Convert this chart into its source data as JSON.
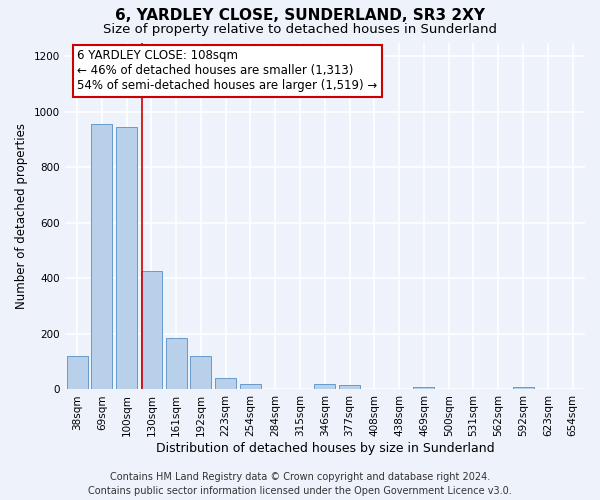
{
  "title": "6, YARDLEY CLOSE, SUNDERLAND, SR3 2XY",
  "subtitle": "Size of property relative to detached houses in Sunderland",
  "xlabel": "Distribution of detached houses by size in Sunderland",
  "ylabel": "Number of detached properties",
  "categories": [
    "38sqm",
    "69sqm",
    "100sqm",
    "130sqm",
    "161sqm",
    "192sqm",
    "223sqm",
    "254sqm",
    "284sqm",
    "315sqm",
    "346sqm",
    "377sqm",
    "408sqm",
    "438sqm",
    "469sqm",
    "500sqm",
    "531sqm",
    "562sqm",
    "592sqm",
    "623sqm",
    "654sqm"
  ],
  "values": [
    120,
    955,
    945,
    425,
    185,
    120,
    42,
    20,
    0,
    0,
    18,
    15,
    0,
    0,
    8,
    0,
    0,
    0,
    8,
    0,
    0
  ],
  "bar_color": "#b8d0ea",
  "bar_edge_color": "#6699cc",
  "vline_x": 2.62,
  "vline_color": "#cc0000",
  "annotation_line1": "6 YARDLEY CLOSE: 108sqm",
  "annotation_line2": "← 46% of detached houses are smaller (1,313)",
  "annotation_line3": "54% of semi-detached houses are larger (1,519) →",
  "annotation_box_color": "#ffffff",
  "annotation_box_edge_color": "#cc0000",
  "ylim": [
    0,
    1250
  ],
  "yticks": [
    0,
    200,
    400,
    600,
    800,
    1000,
    1200
  ],
  "footnote_line1": "Contains HM Land Registry data © Crown copyright and database right 2024.",
  "footnote_line2": "Contains public sector information licensed under the Open Government Licence v3.0.",
  "bg_color": "#eef2fa",
  "grid_color": "#ffffff",
  "title_fontsize": 11,
  "subtitle_fontsize": 9.5,
  "xlabel_fontsize": 9,
  "ylabel_fontsize": 8.5,
  "tick_fontsize": 7.5,
  "annotation_fontsize": 8.5,
  "footnote_fontsize": 7
}
